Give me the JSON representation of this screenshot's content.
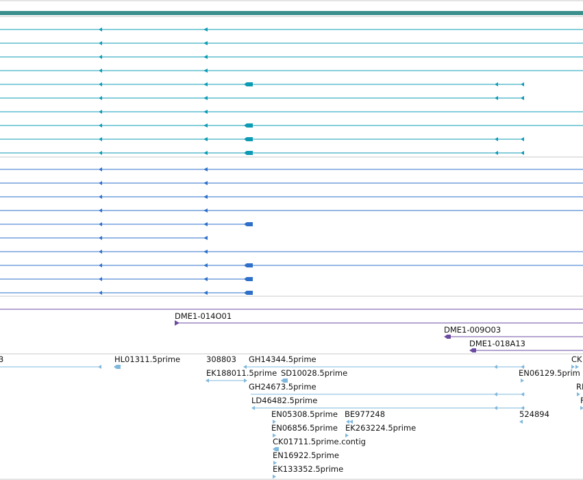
{
  "colors": {
    "header_bar": "#3a8f8c",
    "track_a": "#0c9bb4",
    "track_b": "#2d6fc9",
    "track_c": "#6b4aa0",
    "est": "#7fb8dc",
    "separator": "#c8c8c8",
    "label": "#111111"
  },
  "tracks": {
    "a": {
      "count": 10,
      "arrows_shown": [
        "left-arrow",
        "left-arrow",
        "left-box",
        "left-arrow",
        "left-arrow"
      ],
      "row_profiles": [
        "long",
        "long",
        "long",
        "long",
        "exon3-exon5",
        "to-exon5",
        "long",
        "exon3-long",
        "exon3-exon5",
        "exon3-exon5"
      ]
    },
    "b": {
      "count": 10,
      "row_profiles": [
        "long",
        "long",
        "long",
        "long",
        "short-exon3",
        "short-end",
        "long",
        "exon3-long",
        "short-exon3",
        "short-exon3"
      ]
    },
    "c": {
      "items": [
        {
          "label": "DME1-014O01"
        },
        {
          "label": "DME1-009O03"
        },
        {
          "label": "DME1-018A13"
        }
      ]
    },
    "est": {
      "items": [
        {
          "label": "3"
        },
        {
          "label": "HL01311.5prime"
        },
        {
          "label": "308803"
        },
        {
          "label": "GH14344.5prime"
        },
        {
          "label": "CK"
        },
        {
          "label": "EK188011.5prime"
        },
        {
          "label": "SD10028.5prime"
        },
        {
          "label": "EN06129.5prim"
        },
        {
          "label": "GH24673.5prime"
        },
        {
          "label": "RI"
        },
        {
          "label": "LD46482.5prime"
        },
        {
          "label": "F"
        },
        {
          "label": "EN05308.5prime"
        },
        {
          "label": "BE977248"
        },
        {
          "label": "524894"
        },
        {
          "label": "EN06856.5prime"
        },
        {
          "label": "EK263224.5prime"
        },
        {
          "label": "CK01711.5prime.contig"
        },
        {
          "label": "EN16922.5prime"
        },
        {
          "label": "EK133352.5prime"
        }
      ]
    }
  }
}
